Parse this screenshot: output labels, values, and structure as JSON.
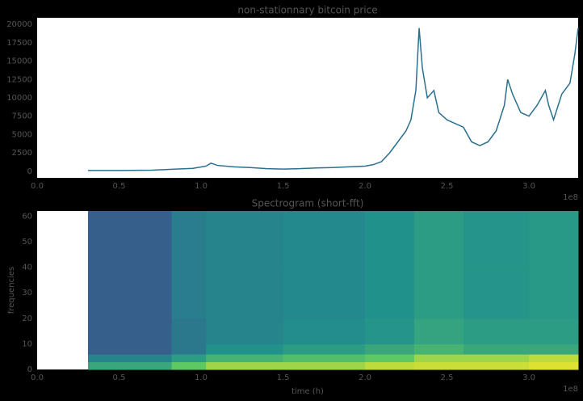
{
  "chart_data": [
    {
      "type": "line",
      "title": "non-stationnary bitcoin price",
      "x": [
        0.31,
        0.5,
        0.7,
        0.85,
        0.95,
        1.03,
        1.06,
        1.1,
        1.2,
        1.3,
        1.4,
        1.5,
        1.6,
        1.7,
        1.8,
        1.9,
        2.0,
        2.05,
        2.1,
        2.15,
        2.2,
        2.25,
        2.28,
        2.31,
        2.33,
        2.35,
        2.38,
        2.42,
        2.45,
        2.5,
        2.55,
        2.6,
        2.65,
        2.7,
        2.75,
        2.8,
        2.85,
        2.87,
        2.9,
        2.95,
        3.0,
        3.05,
        3.1,
        3.12,
        3.15,
        3.2,
        3.25,
        3.28,
        3.3
      ],
      "series": [
        {
          "color": "#2a6f8f",
          "values": [
            100,
            110,
            150,
            300,
            400,
            700,
            1100,
            800,
            600,
            500,
            350,
            300,
            350,
            450,
            500,
            600,
            700,
            900,
            1300,
            2500,
            4000,
            5500,
            7000,
            11000,
            19500,
            14000,
            10000,
            11000,
            8000,
            7000,
            6500,
            6000,
            4000,
            3500,
            4000,
            5500,
            9000,
            12500,
            10500,
            8000,
            7500,
            9000,
            11000,
            9000,
            7000,
            10500,
            12000,
            16000,
            19500
          ]
        }
      ],
      "xlim": [
        0,
        3.3
      ],
      "xticks": [
        {
          "value": 0,
          "label": "0.0"
        },
        0.5,
        {
          "value": 1,
          "label": "1.0"
        },
        1.5,
        {
          "value": 2,
          "label": "2.0"
        },
        2.5,
        {
          "value": 3,
          "label": "3.0"
        }
      ],
      "x_offset": "1e8",
      "ylim": [
        -900,
        20900
      ],
      "yticks": [
        0,
        2500,
        5000,
        7500,
        10000,
        12500,
        15000,
        17500,
        20000
      ]
    },
    {
      "type": "heatmap",
      "title": "Spectrogram (short-fft)",
      "xlabel": "time (h)",
      "ylabel": "frequencies",
      "colormap": "viridis",
      "time_bins": [
        0.31,
        0.82,
        1.03,
        1.5,
        2.0,
        2.3,
        2.6,
        3.0,
        3.3
      ],
      "freq_bins": [
        0,
        3,
        6,
        10,
        20,
        40,
        62
      ],
      "z": [
        [
          0.6,
          0.75,
          0.85,
          0.85,
          0.9,
          0.92,
          0.92,
          0.95
        ],
        [
          0.45,
          0.55,
          0.65,
          0.7,
          0.75,
          0.85,
          0.85,
          0.9
        ],
        [
          0.3,
          0.4,
          0.5,
          0.55,
          0.6,
          0.65,
          0.6,
          0.6
        ],
        [
          0.3,
          0.4,
          0.45,
          0.48,
          0.52,
          0.58,
          0.55,
          0.55
        ],
        [
          0.3,
          0.42,
          0.45,
          0.47,
          0.5,
          0.55,
          0.52,
          0.53
        ],
        [
          0.3,
          0.42,
          0.45,
          0.47,
          0.5,
          0.55,
          0.52,
          0.53
        ]
      ],
      "xlim": [
        0,
        3.3
      ],
      "xticks": [
        {
          "value": 0,
          "label": "0.0"
        },
        0.5,
        {
          "value": 1,
          "label": "1.0"
        },
        1.5,
        {
          "value": 2,
          "label": "2.0"
        },
        2.5,
        {
          "value": 3,
          "label": "3.0"
        }
      ],
      "x_offset": "1e8",
      "ylim": [
        0,
        62
      ],
      "yticks": [
        0,
        10,
        20,
        30,
        40,
        50,
        60
      ]
    }
  ]
}
